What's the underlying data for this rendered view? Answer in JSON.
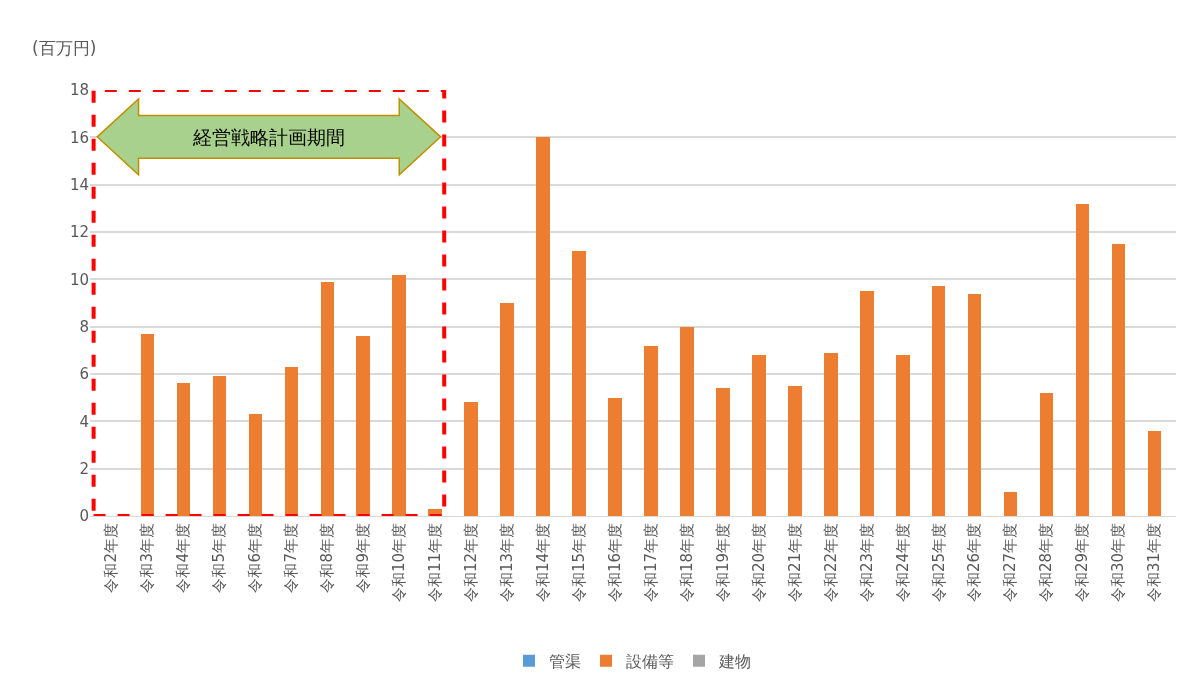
{
  "chart_data": {
    "type": "bar",
    "stacked": true,
    "ylabel": "(百万円)",
    "categories": [
      "令和2年度",
      "令和3年度",
      "令和4年度",
      "令和5年度",
      "令和6年度",
      "令和7年度",
      "令和8年度",
      "令和9年度",
      "令和10年度",
      "令和11年度",
      "令和12年度",
      "令和13年度",
      "令和14年度",
      "令和15年度",
      "令和16年度",
      "令和17年度",
      "令和18年度",
      "令和19年度",
      "令和20年度",
      "令和21年度",
      "令和22年度",
      "令和23年度",
      "令和24年度",
      "令和25年度",
      "令和26年度",
      "令和27年度",
      "令和28年度",
      "令和29年度",
      "令和30年度",
      "令和31年度"
    ],
    "series": [
      {
        "name": "管渠",
        "color": "#5b9bd5",
        "values": [
          0,
          0,
          0,
          0,
          0,
          0,
          0,
          0,
          0,
          0,
          0,
          0,
          0,
          0,
          0,
          0,
          0,
          0,
          0,
          0,
          0,
          0,
          0,
          0,
          0,
          0,
          0,
          0,
          0,
          0
        ]
      },
      {
        "name": "設備等",
        "color": "#ed7d31",
        "values": [
          0,
          7.7,
          5.6,
          5.9,
          4.3,
          6.3,
          9.9,
          7.6,
          10.2,
          0.3,
          4.8,
          9.0,
          16.0,
          11.2,
          5.0,
          7.2,
          8.0,
          5.4,
          6.8,
          5.5,
          6.9,
          9.5,
          6.8,
          9.7,
          9.4,
          1.0,
          5.2,
          13.2,
          11.5,
          3.6
        ]
      },
      {
        "name": "建物",
        "color": "#a5a5a5",
        "values": [
          0,
          0,
          0,
          0,
          0,
          0,
          0,
          0,
          0,
          0,
          0,
          0,
          0,
          0,
          0,
          0,
          0,
          0,
          0,
          0,
          0,
          0,
          0,
          0,
          0,
          0,
          0,
          0,
          0,
          0
        ]
      }
    ],
    "ylim": [
      0,
      18
    ],
    "yticks": [
      0,
      2,
      4,
      6,
      8,
      10,
      12,
      14,
      16,
      18
    ],
    "grid": "y",
    "legend": "bottom",
    "annotations": [
      "経営戦略計画期間"
    ]
  }
}
